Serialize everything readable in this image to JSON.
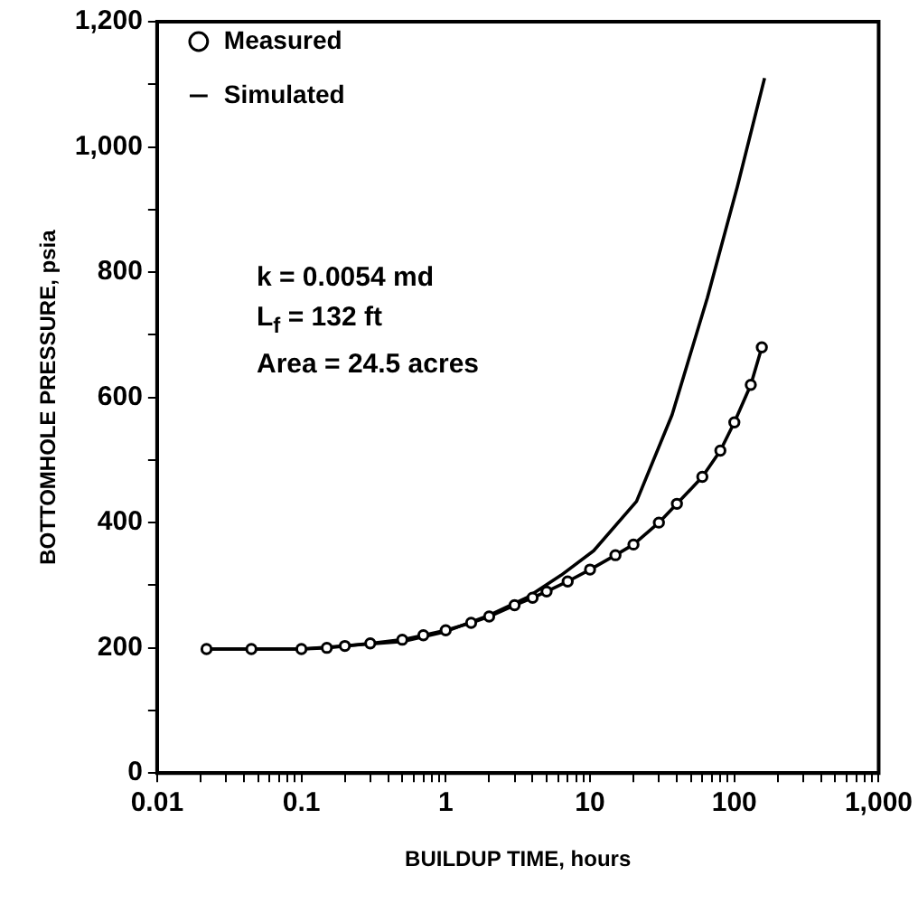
{
  "chart_data": {
    "type": "line",
    "xlabel": "BUILDUP TIME, hours",
    "ylabel": "BOTTOMHOLE PRESSURE, psia",
    "log": "x",
    "legend": "top left",
    "line_style": "solid",
    "xlim": [
      0.01,
      1000
    ],
    "ylim": [
      0,
      1200
    ],
    "xticks": [
      0.01,
      {
        "value": 0.02,
        "label": null
      },
      {
        "value": 0.03,
        "label": null
      },
      {
        "value": 0.04,
        "label": null
      },
      {
        "value": 0.05,
        "label": null
      },
      {
        "value": 0.06,
        "label": null
      },
      {
        "value": 0.07,
        "label": null
      },
      {
        "value": 0.08,
        "label": null
      },
      {
        "value": 0.09,
        "label": null
      },
      0.1,
      {
        "value": 0.2,
        "label": null
      },
      {
        "value": 0.3,
        "label": null
      },
      {
        "value": 0.4,
        "label": null
      },
      {
        "value": 0.5,
        "label": null
      },
      {
        "value": 0.6,
        "label": null
      },
      {
        "value": 0.7,
        "label": null
      },
      {
        "value": 0.8,
        "label": null
      },
      {
        "value": 0.9,
        "label": null
      },
      1,
      {
        "value": 2,
        "label": null
      },
      {
        "value": 3,
        "label": null
      },
      {
        "value": 4,
        "label": null
      },
      {
        "value": 5,
        "label": null
      },
      {
        "value": 6,
        "label": null
      },
      {
        "value": 7,
        "label": null
      },
      {
        "value": 8,
        "label": null
      },
      {
        "value": 9,
        "label": null
      },
      10,
      {
        "value": 20,
        "label": null
      },
      {
        "value": 30,
        "label": null
      },
      {
        "value": 40,
        "label": null
      },
      {
        "value": 50,
        "label": null
      },
      {
        "value": 60,
        "label": null
      },
      {
        "value": 70,
        "label": null
      },
      {
        "value": 80,
        "label": null
      },
      {
        "value": 90,
        "label": null
      },
      100,
      {
        "value": 200,
        "label": null
      },
      {
        "value": 300,
        "label": null
      },
      {
        "value": 400,
        "label": null
      },
      {
        "value": 500,
        "label": null
      },
      {
        "value": 600,
        "label": null
      },
      {
        "value": 700,
        "label": null
      },
      {
        "value": 800,
        "label": null
      },
      {
        "value": 900,
        "label": null
      },
      {
        "value": 1000,
        "label": "1,000"
      }
    ],
    "yticks": [
      0,
      {
        "value": 100,
        "label": null
      },
      200,
      {
        "value": 300,
        "label": null
      },
      400,
      {
        "value": 500,
        "label": null
      },
      600,
      {
        "value": 700,
        "label": null
      },
      800,
      {
        "value": 900,
        "label": null
      },
      {
        "value": 1000,
        "label": "1,000"
      },
      {
        "value": 1100,
        "label": null
      },
      {
        "value": 1200,
        "label": "1,200"
      }
    ],
    "series": [
      {
        "name": "Measured",
        "color": "#000000",
        "marker": "circle",
        "x": [
          0.022,
          0.045,
          0.1,
          0.15,
          0.2,
          0.3,
          0.5,
          0.7,
          1,
          1.5,
          2,
          3,
          4,
          5,
          7,
          10,
          15,
          20,
          30,
          40,
          60,
          80,
          100,
          130,
          155
        ],
        "values": [
          198,
          198,
          198,
          200,
          203,
          207,
          213,
          220,
          228,
          240,
          250,
          268,
          280,
          290,
          306,
          325,
          348,
          365,
          400,
          430,
          473,
          515,
          560,
          620,
          680
        ]
      },
      {
        "name": "Simulated",
        "color": "#000000",
        "marker": "none",
        "x": [
          0.022,
          0.1,
          0.5,
          1,
          2,
          3.7,
          6.3,
          10.6,
          21,
          37,
          65,
          105,
          162
        ],
        "values": [
          198,
          198,
          210,
          226,
          252,
          281,
          316,
          355,
          434,
          572,
          759,
          937,
          1110
        ]
      }
    ],
    "annotations": [
      "k = 0.0054 md",
      "L$_{f}$ = 132 ft",
      "Area = 24.5 acres"
    ]
  }
}
